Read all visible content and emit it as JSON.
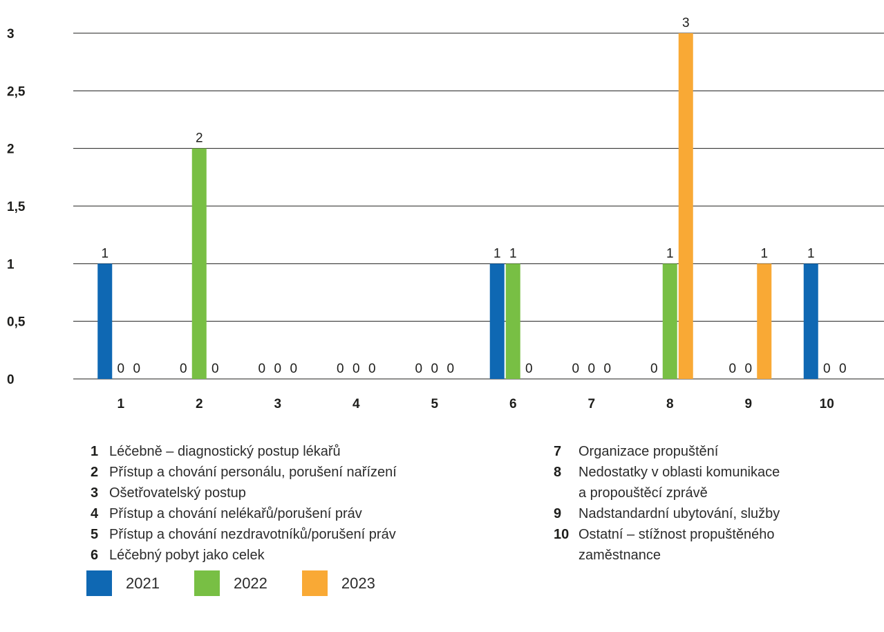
{
  "chart_data": {
    "type": "bar",
    "categories": [
      "1",
      "2",
      "3",
      "4",
      "5",
      "6",
      "7",
      "8",
      "9",
      "10"
    ],
    "series": [
      {
        "name": "2021",
        "color": "#0f68b3",
        "values": [
          1,
          0,
          0,
          0,
          0,
          1,
          0,
          0,
          0,
          1
        ]
      },
      {
        "name": "2022",
        "color": "#78bf44",
        "values": [
          0,
          2,
          0,
          0,
          0,
          1,
          0,
          1,
          0,
          0
        ]
      },
      {
        "name": "2023",
        "color": "#f9a935",
        "values": [
          0,
          0,
          0,
          0,
          0,
          0,
          0,
          3,
          1,
          0
        ]
      }
    ],
    "ylim": [
      0,
      3
    ],
    "yticks": [
      "0",
      "0,5",
      "1",
      "1,5",
      "2",
      "2,5",
      "3"
    ],
    "grid": true,
    "legend_position": "bottom-left"
  },
  "categories_legend": {
    "left": [
      {
        "num": "1",
        "text": "Léčebně – diagnostický postup lékařů"
      },
      {
        "num": "2",
        "text": "Přístup a chování personálu, porušení nařízení"
      },
      {
        "num": "3",
        "text": "Ošetřovatelský postup"
      },
      {
        "num": "4",
        "text": "Přístup a chování nelékařů/porušení práv"
      },
      {
        "num": "5",
        "text": "Přístup a chování nezdravotníků/porušení práv"
      },
      {
        "num": "6",
        "text": "Léčebný pobyt jako celek"
      }
    ],
    "right": [
      {
        "num": "7",
        "text": "Organizace propuštění"
      },
      {
        "num": "8",
        "text": "Nedostatky v oblasti komunikace\na propouštěcí zprávě"
      },
      {
        "num": "9",
        "text": "Nadstandardní ubytování, služby"
      },
      {
        "num": "10",
        "text": "Ostatní – stížnost propuštěného\nzaměstnance"
      }
    ]
  }
}
